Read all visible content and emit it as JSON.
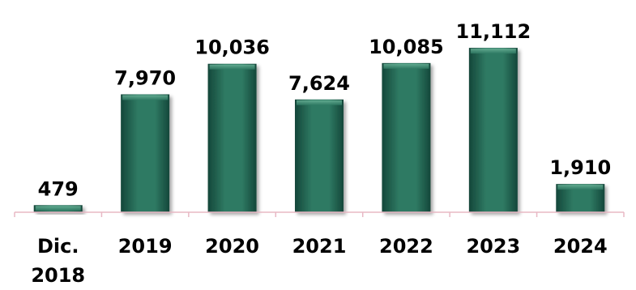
{
  "chart_data": {
    "type": "bar",
    "categories": [
      [
        "Dic.",
        "2018"
      ],
      [
        "2019"
      ],
      [
        "2020"
      ],
      [
        "2021"
      ],
      [
        "2022"
      ],
      [
        "2023"
      ],
      [
        "2024"
      ]
    ],
    "values": [
      479,
      7970,
      10036,
      7624,
      10085,
      11112,
      1910
    ],
    "value_labels": [
      "479",
      "7,970",
      "10,036",
      "7,624",
      "10,085",
      "11,112",
      "1,910"
    ],
    "ylim": [
      0,
      11500
    ],
    "grid": false,
    "legend": "none",
    "colors": {
      "bar_fill": "#2f7a63",
      "bar_highlight": "#6fb79c",
      "bar_dark": "#14473a",
      "axis": "#e8b8c4"
    }
  }
}
